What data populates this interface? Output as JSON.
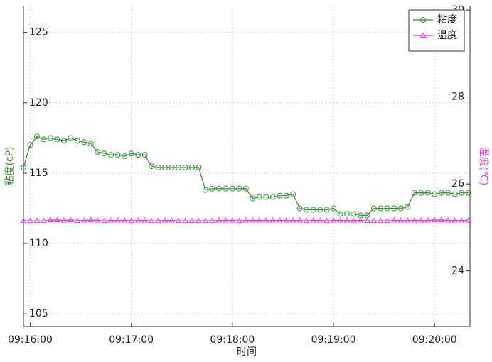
{
  "chart_data": {
    "type": "line",
    "xlabel": "时间",
    "ylabel": "粘度(cP)",
    "y2label": "温度(℃)",
    "x": [
      "09:15:56",
      "09:16:00",
      "09:16:04",
      "09:16:08",
      "09:16:12",
      "09:16:16",
      "09:16:20",
      "09:16:24",
      "09:16:28",
      "09:16:32",
      "09:16:36",
      "09:16:40",
      "09:16:44",
      "09:16:48",
      "09:16:52",
      "09:16:56",
      "09:17:00",
      "09:17:04",
      "09:17:08",
      "09:17:12",
      "09:17:16",
      "09:17:20",
      "09:17:24",
      "09:17:28",
      "09:17:32",
      "09:17:36",
      "09:17:40",
      "09:17:44",
      "09:17:48",
      "09:17:52",
      "09:17:56",
      "09:18:00",
      "09:18:04",
      "09:18:08",
      "09:18:12",
      "09:18:16",
      "09:18:20",
      "09:18:24",
      "09:18:28",
      "09:18:32",
      "09:18:36",
      "09:18:40",
      "09:18:44",
      "09:18:48",
      "09:18:52",
      "09:18:56",
      "09:19:00",
      "09:19:04",
      "09:19:08",
      "09:19:12",
      "09:19:16",
      "09:19:20",
      "09:19:24",
      "09:19:28",
      "09:19:32",
      "09:19:36",
      "09:19:40",
      "09:19:44",
      "09:19:48",
      "09:19:52",
      "09:19:56",
      "09:20:00",
      "09:20:04",
      "09:20:08",
      "09:20:12",
      "09:20:16",
      "09:20:20"
    ],
    "xlim": [
      "09:15:56",
      "09:20:21"
    ],
    "xticks": [
      "09:16:00",
      "09:17:00",
      "09:18:00",
      "09:19:00",
      "09:20:00"
    ],
    "ylim": [
      104.1,
      126.9
    ],
    "yticks": [
      105,
      110,
      115,
      120,
      125
    ],
    "y2lim": [
      22.72,
      30.1
    ],
    "y2ticks": [
      24,
      26,
      28,
      30
    ],
    "grid": true,
    "legend": "upper right",
    "series": [
      {
        "name": "粘度",
        "color": "#3f8f3f",
        "marker": "circle",
        "values": [
          115.4,
          117.0,
          117.6,
          117.4,
          117.5,
          117.4,
          117.3,
          117.5,
          117.3,
          117.2,
          117.1,
          116.5,
          116.4,
          116.3,
          116.3,
          116.2,
          116.4,
          116.3,
          116.3,
          115.5,
          115.4,
          115.4,
          115.4,
          115.4,
          115.4,
          115.4,
          115.4,
          113.8,
          113.9,
          113.9,
          113.9,
          113.9,
          113.9,
          113.9,
          113.2,
          113.3,
          113.3,
          113.3,
          113.4,
          113.4,
          113.5,
          112.5,
          112.4,
          112.4,
          112.4,
          112.4,
          112.5,
          112.1,
          112.1,
          112.1,
          112.0,
          112.0,
          112.5,
          112.5,
          112.5,
          112.5,
          112.5,
          112.6,
          113.6,
          113.6,
          113.6,
          113.5,
          113.6,
          113.6,
          113.5,
          113.6,
          113.6
        ]
      },
      {
        "name": "温度",
        "color": "#e040e0",
        "marker": "triangle",
        "axis": "y2",
        "values": [
          25.15,
          25.15,
          25.15,
          25.15,
          25.17,
          25.17,
          25.16,
          25.17,
          25.15,
          25.16,
          25.17,
          25.16,
          25.15,
          25.16,
          25.16,
          25.16,
          25.15,
          25.16,
          25.16,
          25.15,
          25.15,
          25.16,
          25.16,
          25.15,
          25.15,
          25.15,
          25.15,
          25.15,
          25.15,
          25.16,
          25.16,
          25.16,
          25.15,
          25.16,
          25.16,
          25.16,
          25.16,
          25.16,
          25.16,
          25.16,
          25.16,
          25.16,
          25.15,
          25.16,
          25.16,
          25.15,
          25.16,
          25.16,
          25.16,
          25.16,
          25.16,
          25.15,
          25.15,
          25.15,
          25.15,
          25.16,
          25.16,
          25.16,
          25.16,
          25.16,
          25.16,
          25.17,
          25.17,
          25.16,
          25.16,
          25.16,
          25.16
        ]
      }
    ]
  }
}
